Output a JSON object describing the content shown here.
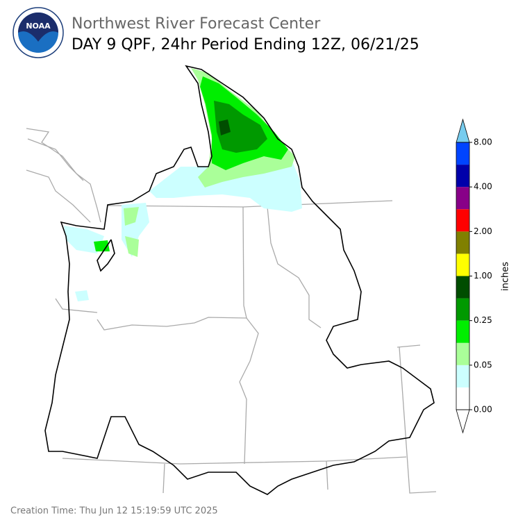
{
  "header": {
    "agency": "Northwest River Forecast Center",
    "title": "DAY 9 QPF, 24hr Period Ending 12Z, 06/21/25",
    "logo_text": "NOAA"
  },
  "colorbar": {
    "unit": "inches",
    "colors": [
      "#ffffff",
      "#ccffff",
      "#aaff99",
      "#00ee00",
      "#009900",
      "#004d00",
      "#ffff00",
      "#808000",
      "#ff0000",
      "#880088",
      "#0000aa",
      "#0044ff"
    ],
    "over_color": "#77ccee",
    "under_color": "#ffffff",
    "ticks": [
      {
        "value": 0,
        "label": "0.00"
      },
      {
        "value": 0.05,
        "label": "0.05"
      },
      {
        "value": 0.25,
        "label": "0.25"
      },
      {
        "value": 1,
        "label": "1.00"
      },
      {
        "value": 2,
        "label": "2.00"
      },
      {
        "value": 4,
        "label": "4.00"
      },
      {
        "value": 8,
        "label": "8.00"
      }
    ]
  },
  "footer": {
    "creation_time": "Creation Time: Thu Jun 12 15:19:59 UTC 2025"
  }
}
